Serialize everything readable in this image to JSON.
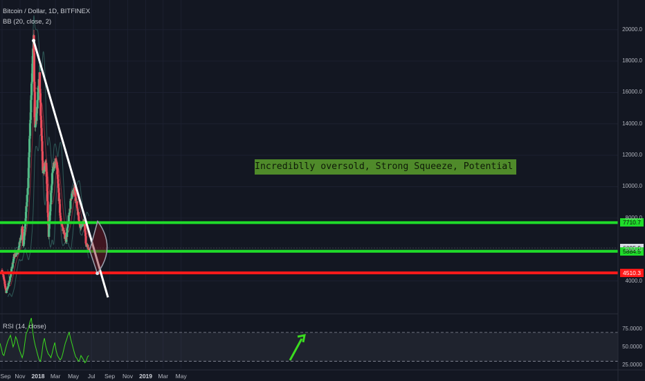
{
  "header": {
    "symbol": "Bitcoin / Dollar, 1D, BITFINEX",
    "indicator": "BB (20, close, 2)",
    "rsi_label": "RSI (14, close)"
  },
  "annotation": "Incrediblly oversold, Strong Squeeze, Potential Reversal",
  "colors": {
    "background": "#131722",
    "up_candle": "#53b987",
    "down_candle": "#eb4d5c",
    "bb_basis": "#8a2f3a",
    "bb_band": "#2f5a58",
    "trendline": "#ffffff",
    "support_green": "#1fdc2a",
    "support_red": "#ff1a1a",
    "rsi_line": "#3bdc1f",
    "arrow": "#3bdc1f",
    "note_bg": "#4f8a2a"
  },
  "chart_data": [
    {
      "type": "candlestick",
      "title": "Bitcoin / Dollar, 1D, BITFINEX",
      "price_axis": {
        "ticks": [
          "20000.0",
          "18000.0",
          "16000.0",
          "14000.0",
          "12000.0",
          "10000.0",
          "8000.0",
          "6000.0",
          "4000.0"
        ],
        "range": [
          3000,
          20800
        ]
      },
      "time_axis": {
        "labels": [
          "Sep",
          "Nov",
          "2018",
          "Mar",
          "May",
          "Jul",
          "Sep",
          "Nov",
          "2019",
          "Mar",
          "May"
        ]
      },
      "price_path": [
        {
          "date": "2017-09-01",
          "price": 4700
        },
        {
          "date": "2017-09-15",
          "price": 3300
        },
        {
          "date": "2017-09-25",
          "price": 3900
        },
        {
          "date": "2017-10-12",
          "price": 5600
        },
        {
          "date": "2017-10-25",
          "price": 5800
        },
        {
          "date": "2017-11-08",
          "price": 7300
        },
        {
          "date": "2017-11-12",
          "price": 6200
        },
        {
          "date": "2017-11-28",
          "price": 10000
        },
        {
          "date": "2017-12-07",
          "price": 15000
        },
        {
          "date": "2017-12-17",
          "price": 19300
        },
        {
          "date": "2017-12-22",
          "price": 13500
        },
        {
          "date": "2017-12-28",
          "price": 14800
        },
        {
          "date": "2018-01-06",
          "price": 17000
        },
        {
          "date": "2018-01-17",
          "price": 11000
        },
        {
          "date": "2018-01-28",
          "price": 11600
        },
        {
          "date": "2018-02-06",
          "price": 6900
        },
        {
          "date": "2018-02-20",
          "price": 11300
        },
        {
          "date": "2018-03-05",
          "price": 11500
        },
        {
          "date": "2018-03-18",
          "price": 7900
        },
        {
          "date": "2018-04-01",
          "price": 6900
        },
        {
          "date": "2018-04-06",
          "price": 6600
        },
        {
          "date": "2018-04-24",
          "price": 9400
        },
        {
          "date": "2018-05-05",
          "price": 9800
        },
        {
          "date": "2018-05-23",
          "price": 7500
        },
        {
          "date": "2018-06-07",
          "price": 7700
        },
        {
          "date": "2018-06-13",
          "price": 6300
        },
        {
          "date": "2018-06-22",
          "price": 6100
        }
      ],
      "bollinger_bands": {
        "name": "BB (20, close, 2)",
        "period": 20,
        "stddev": 2
      },
      "trendline": {
        "start": {
          "date": "2017-12-17",
          "price": 19300
        },
        "end": {
          "date": "2018-08-26",
          "price": 2950
        }
      },
      "horizontal_levels": [
        {
          "value": 7710.7,
          "label": "7710.7",
          "color": "#1fdc2a"
        },
        {
          "value": 6095.9,
          "label": "6095.9",
          "color": "#d8dde6"
        },
        {
          "value": 5884.5,
          "label": "5884.5",
          "color": "#1fdc2a"
        },
        {
          "value": 4510.3,
          "label": "4510.3",
          "color": "#ff1a1a"
        }
      ]
    },
    {
      "type": "line",
      "title": "RSI (14, close)",
      "y_ticks": [
        "75.0000",
        "50.0000",
        "25.0000"
      ],
      "ylim": [
        20,
        90
      ],
      "bands": [
        70,
        30
      ],
      "series": [
        {
          "values": [
            55,
            48,
            40,
            38,
            45,
            52,
            58,
            62,
            66,
            58,
            50,
            55,
            64,
            60,
            52,
            45,
            40,
            35,
            42,
            55,
            68,
            72,
            78,
            85,
            90,
            72,
            60,
            52,
            45,
            38,
            32,
            30,
            40,
            55,
            62,
            52,
            45,
            40,
            38,
            35,
            42,
            50,
            56,
            45,
            38,
            35,
            32,
            34,
            40,
            48,
            55,
            60,
            66,
            70,
            62,
            55,
            48,
            42,
            36,
            34,
            30,
            32,
            38,
            35,
            32,
            28,
            30,
            36,
            38
          ]
        }
      ]
    }
  ]
}
